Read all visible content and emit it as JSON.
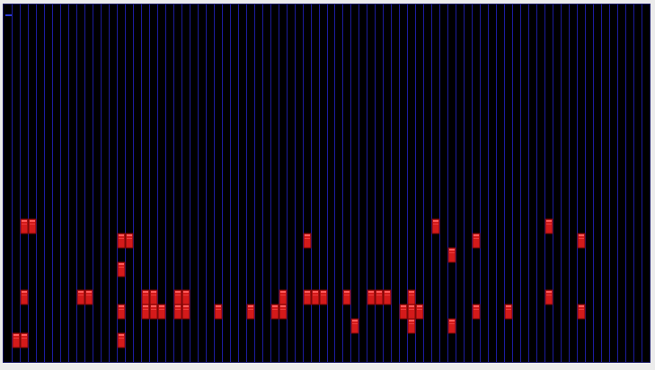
{
  "app": {
    "colors": {
      "page_background": "#ececec",
      "board_background": "#000000",
      "grid_line": "#1c1c9e",
      "brick_fill": "#d41a1a",
      "brick_highlight": "#ff5a5a",
      "brick_shadow": "#7a0808",
      "cursor": "#2b3bd6"
    },
    "grid": {
      "columns": 80,
      "rows": 25
    },
    "bricks": [
      [
        2,
        15
      ],
      [
        3,
        15
      ],
      [
        14,
        16
      ],
      [
        15,
        16
      ],
      [
        37,
        16
      ],
      [
        53,
        15
      ],
      [
        58,
        16
      ],
      [
        67,
        15
      ],
      [
        71,
        16
      ],
      [
        14,
        18
      ],
      [
        55,
        17
      ],
      [
        2,
        20
      ],
      [
        9,
        20
      ],
      [
        10,
        20
      ],
      [
        17,
        20
      ],
      [
        18,
        20
      ],
      [
        21,
        20
      ],
      [
        22,
        20
      ],
      [
        34,
        20
      ],
      [
        37,
        20
      ],
      [
        38,
        20
      ],
      [
        39,
        20
      ],
      [
        42,
        20
      ],
      [
        45,
        20
      ],
      [
        46,
        20
      ],
      [
        47,
        20
      ],
      [
        50,
        20
      ],
      [
        67,
        20
      ],
      [
        14,
        21
      ],
      [
        17,
        21
      ],
      [
        18,
        21
      ],
      [
        19,
        21
      ],
      [
        21,
        21
      ],
      [
        22,
        21
      ],
      [
        26,
        21
      ],
      [
        30,
        21
      ],
      [
        33,
        21
      ],
      [
        34,
        21
      ],
      [
        49,
        21
      ],
      [
        50,
        21
      ],
      [
        51,
        21
      ],
      [
        58,
        21
      ],
      [
        62,
        21
      ],
      [
        71,
        21
      ],
      [
        43,
        22
      ],
      [
        50,
        22
      ],
      [
        55,
        22
      ],
      [
        1,
        23
      ],
      [
        2,
        23
      ],
      [
        14,
        23
      ]
    ]
  }
}
